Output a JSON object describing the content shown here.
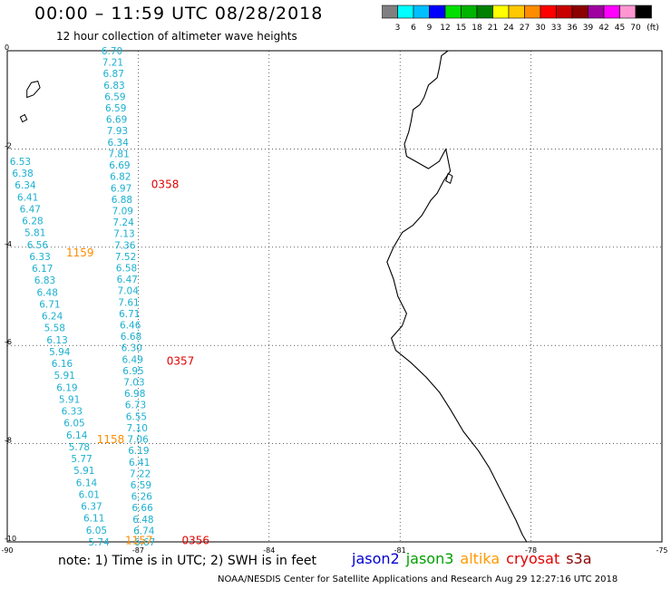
{
  "header": {
    "title": "00:00 – 11:59 UTC 08/28/2018",
    "subtitle": "12 hour collection of altimeter wave heights"
  },
  "colorbar": {
    "unit": "(ft)",
    "bins": [
      {
        "color": "#808080",
        "label": "3"
      },
      {
        "color": "#00ffff",
        "label": "6"
      },
      {
        "color": "#00bfff",
        "label": "9"
      },
      {
        "color": "#0000ff",
        "label": "12"
      },
      {
        "color": "#00e000",
        "label": "15"
      },
      {
        "color": "#00b400",
        "label": "18"
      },
      {
        "color": "#008000",
        "label": "21"
      },
      {
        "color": "#ffff00",
        "label": "24"
      },
      {
        "color": "#ffc800",
        "label": "27"
      },
      {
        "color": "#ff8c00",
        "label": "30"
      },
      {
        "color": "#ff0000",
        "label": "33"
      },
      {
        "color": "#c80000",
        "label": "36"
      },
      {
        "color": "#8c0000",
        "label": "39"
      },
      {
        "color": "#a000a0",
        "label": "42"
      },
      {
        "color": "#ff00ff",
        "label": "45"
      },
      {
        "color": "#ff96d2",
        "label": "70"
      },
      {
        "color": "#000000",
        "label": ""
      }
    ]
  },
  "map": {
    "lon_range": [
      -90,
      -75
    ],
    "lat_range": [
      -10,
      0
    ],
    "x_ticks": [
      {
        "value": -90,
        "label": "-90"
      },
      {
        "value": -87,
        "label": "-87"
      },
      {
        "value": -84,
        "label": "-84"
      },
      {
        "value": -81,
        "label": "-81"
      },
      {
        "value": -78,
        "label": "-78"
      },
      {
        "value": -75,
        "label": "-75"
      }
    ],
    "y_ticks": [
      {
        "value": 0,
        "label": "0"
      },
      {
        "value": -2,
        "label": "-2"
      },
      {
        "value": -4,
        "label": "-4"
      },
      {
        "value": -6,
        "label": "-6"
      },
      {
        "value": -8,
        "label": "-8"
      },
      {
        "value": -10,
        "label": "-10"
      }
    ],
    "track_color": "#1ab0d0",
    "tracks": [
      {
        "lon_start": -87.6,
        "lat_start": 0.0,
        "lon_end": -86.85,
        "lat_end": -10.0,
        "values": [
          "6.70",
          "7.21",
          "6.87",
          "6.83",
          "6.59",
          "6.59",
          "6.69",
          "7.93",
          "6.34",
          "7.81",
          "6.69",
          "6.82",
          "6.97",
          "6.88",
          "7.09",
          "7.24",
          "7.13",
          "7.36",
          "7.52",
          "6.58",
          "6.47",
          "7.04",
          "7.61",
          "6.71",
          "6.46",
          "6.68",
          "6.30",
          "6.49",
          "6.95",
          "7.03",
          "6.98",
          "6.73",
          "6.55",
          "7.10",
          "7.06",
          "6.19",
          "6.41",
          "7.22",
          "6.59",
          "6.26",
          "6.66",
          "6.48",
          "6.74",
          "6.67"
        ]
      },
      {
        "lon_start": -89.7,
        "lat_start": -2.25,
        "lon_end": -87.9,
        "lat_end": -10.0,
        "values": [
          "6.53",
          "6.38",
          "6.34",
          "6.41",
          "6.47",
          "6.28",
          "5.81",
          "6.56",
          "6.33",
          "6.17",
          "6.83",
          "6.48",
          "6.71",
          "6.24",
          "5.58",
          "6.13",
          "5.94",
          "6.16",
          "5.91",
          "6.19",
          "5.91",
          "6.33",
          "6.05",
          "6.14",
          "5.78",
          "5.77",
          "5.91",
          "6.14",
          "6.01",
          "6.37",
          "6.11",
          "6.05",
          "5.74"
        ]
      }
    ],
    "time_labels": [
      {
        "text": "0358",
        "lon": -86.7,
        "lat": -2.7,
        "color": "#e00000"
      },
      {
        "text": "0357",
        "lon": -86.35,
        "lat": -6.3,
        "color": "#e00000"
      },
      {
        "text": "0356",
        "lon": -86.0,
        "lat": -9.95,
        "color": "#e00000"
      },
      {
        "text": "1159",
        "lon": -88.65,
        "lat": -4.1,
        "color": "#ff8c00"
      },
      {
        "text": "1158",
        "lon": -87.95,
        "lat": -7.9,
        "color": "#ff8c00"
      },
      {
        "text": "1157",
        "lon": -87.3,
        "lat": -9.95,
        "color": "#ff8c00"
      }
    ],
    "coastline": [
      [
        -79.9,
        0.0
      ],
      [
        -80.05,
        -0.1
      ],
      [
        -80.1,
        -0.35
      ],
      [
        -80.15,
        -0.55
      ],
      [
        -80.35,
        -0.7
      ],
      [
        -80.45,
        -0.95
      ],
      [
        -80.55,
        -1.1
      ],
      [
        -80.7,
        -1.2
      ],
      [
        -80.75,
        -1.45
      ],
      [
        -80.8,
        -1.65
      ],
      [
        -80.9,
        -1.9
      ],
      [
        -80.85,
        -2.15
      ],
      [
        -80.65,
        -2.25
      ],
      [
        -80.35,
        -2.4
      ],
      [
        -80.1,
        -2.25
      ],
      [
        -79.95,
        -2.0
      ],
      [
        -79.85,
        -2.45
      ],
      [
        -80.0,
        -2.65
      ],
      [
        -80.15,
        -2.9
      ],
      [
        -80.3,
        -3.05
      ],
      [
        -80.5,
        -3.35
      ],
      [
        -80.7,
        -3.55
      ],
      [
        -80.95,
        -3.7
      ],
      [
        -81.15,
        -4.0
      ],
      [
        -81.3,
        -4.3
      ],
      [
        -81.15,
        -4.65
      ],
      [
        -81.05,
        -5.0
      ],
      [
        -80.85,
        -5.35
      ],
      [
        -80.95,
        -5.6
      ],
      [
        -81.2,
        -5.85
      ],
      [
        -81.1,
        -6.1
      ],
      [
        -80.75,
        -6.35
      ],
      [
        -80.4,
        -6.65
      ],
      [
        -80.1,
        -6.95
      ],
      [
        -79.85,
        -7.3
      ],
      [
        -79.55,
        -7.75
      ],
      [
        -79.2,
        -8.15
      ],
      [
        -78.95,
        -8.5
      ],
      [
        -78.75,
        -8.85
      ],
      [
        -78.55,
        -9.2
      ],
      [
        -78.35,
        -9.55
      ],
      [
        -78.2,
        -9.85
      ],
      [
        -78.1,
        -10.0
      ]
    ],
    "islands": [
      [
        [
          -89.55,
          -0.8
        ],
        [
          -89.45,
          -0.65
        ],
        [
          -89.3,
          -0.62
        ],
        [
          -89.25,
          -0.75
        ],
        [
          -89.4,
          -0.9
        ],
        [
          -89.55,
          -0.95
        ]
      ],
      [
        [
          -89.7,
          -1.35
        ],
        [
          -89.6,
          -1.3
        ],
        [
          -89.55,
          -1.4
        ],
        [
          -89.65,
          -1.45
        ]
      ],
      [
        [
          -79.95,
          -2.65
        ],
        [
          -79.9,
          -2.5
        ],
        [
          -79.8,
          -2.55
        ],
        [
          -79.85,
          -2.7
        ]
      ]
    ]
  },
  "footer": {
    "note": "note:  1) Time is in UTC;  2) SWH is in feet",
    "satellites": [
      {
        "name": "jason2",
        "color": "#0000d0"
      },
      {
        "name": "jason3",
        "color": "#00a000"
      },
      {
        "name": "altika",
        "color": "#ff9900"
      },
      {
        "name": "cryosat",
        "color": "#e00000"
      },
      {
        "name": "s3a",
        "color": "#8b0000"
      }
    ],
    "credit": "NOAA/NESDIS Center for Satellite Applications and Research    Aug 29 12:27:16 UTC 2018"
  }
}
